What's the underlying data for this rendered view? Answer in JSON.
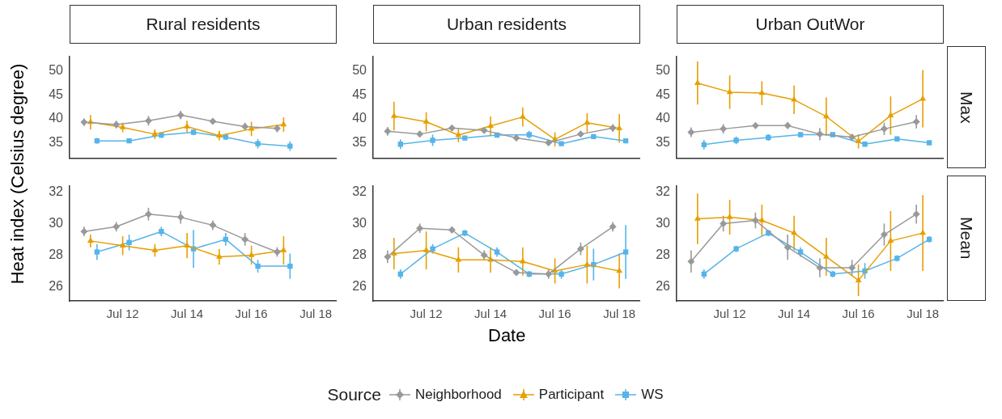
{
  "chart_data": [
    {
      "type": "line",
      "title": "Rural residents",
      "ylabel": "Heat index (Celsius degree)",
      "legend": "bottom",
      "legend_title": "Source",
      "xlim": [
        "--07-10T08:24",
        "--07-18T15:36"
      ],
      "ylim": [
        31.8,
        53.1
      ],
      "yticks": [
        35,
        40,
        45,
        50
      ],
      "tick_labels": "y",
      "series": [
        {
          "name": "Neighborhood",
          "color": "#999999",
          "marker": "diamond",
          "x": [
            "--07-10T19:12",
            "--07-11T19:12",
            "--07-12T19:12",
            "--07-13T19:12",
            "--07-14T19:12",
            "--07-15T19:12",
            "--07-16T19:12"
          ],
          "values": [
            39.3,
            38.8,
            39.6,
            40.8,
            39.5,
            38.4,
            38.0
          ],
          "errors": [
            0.8,
            0.8,
            1.0,
            0.9,
            0.5,
            0.8,
            0.8
          ]
        },
        {
          "name": "Participant",
          "color": "#e69f00",
          "marker": "triangle",
          "x": [
            "--07-11",
            "--07-12",
            "--07-13",
            "--07-14",
            "--07-15",
            "--07-16",
            "--07-17"
          ],
          "values": [
            39.3,
            38.2,
            36.8,
            38.4,
            36.5,
            37.9,
            38.8
          ],
          "errors": [
            1.5,
            1.0,
            1.0,
            1.2,
            1.0,
            1.5,
            1.5
          ]
        },
        {
          "name": "WS",
          "color": "#56b4e9",
          "marker": "square",
          "x": [
            "--07-11T04:48",
            "--07-12T04:48",
            "--07-13T04:48",
            "--07-14T04:48",
            "--07-15T04:48",
            "--07-16T04:48",
            "--07-17T04:48"
          ],
          "values": [
            35.4,
            35.4,
            36.6,
            37.2,
            36.2,
            34.8,
            34.3
          ],
          "errors": [
            0.6,
            0.3,
            0.6,
            0.6,
            0.6,
            1.0,
            1.0
          ]
        }
      ]
    },
    {
      "type": "line",
      "title": "Urban residents",
      "xlim": [
        "--07-10T08:24",
        "--07-18T15:36"
      ],
      "ylim": [
        31.8,
        53.1
      ],
      "yticks": [
        35,
        40,
        45,
        50
      ],
      "tick_labels": "y",
      "series": [
        {
          "color": "#999999",
          "marker": "diamond",
          "x": [
            "--07-10T19:12",
            "--07-11T19:12",
            "--07-12T19:12",
            "--07-13T19:12",
            "--07-14T19:12",
            "--07-15T19:12",
            "--07-16T19:12",
            "--07-17T19:12"
          ],
          "values": [
            37.4,
            36.8,
            38.1,
            37.6,
            36.0,
            35.0,
            36.8,
            38.1
          ],
          "errors": [
            0.9,
            0.6,
            0.5,
            0.5,
            0.6,
            0.5,
            0.5,
            0.8
          ]
        },
        {
          "color": "#e69f00",
          "marker": "triangle",
          "x": [
            "--07-11",
            "--07-12",
            "--07-13",
            "--07-14",
            "--07-15",
            "--07-16",
            "--07-17",
            "--07-18"
          ],
          "values": [
            40.6,
            39.4,
            36.6,
            38.5,
            40.4,
            35.7,
            39.2,
            38.0
          ],
          "errors": [
            3.0,
            2.0,
            1.5,
            2.0,
            2.0,
            1.5,
            2.0,
            3.0
          ]
        },
        {
          "color": "#56b4e9",
          "marker": "square",
          "x": [
            "--07-11T04:48",
            "--07-12T04:48",
            "--07-13T04:48",
            "--07-14T04:48",
            "--07-15T04:48",
            "--07-16T04:48",
            "--07-17T04:48",
            "--07-18T04:48"
          ],
          "values": [
            34.7,
            35.5,
            36.0,
            36.6,
            36.7,
            34.8,
            36.3,
            35.4
          ],
          "errors": [
            1.0,
            1.2,
            0.5,
            0.3,
            0.8,
            0.4,
            0.3,
            0.3
          ]
        }
      ]
    },
    {
      "type": "line",
      "title": "Urban OutWor",
      "annotations": [
        "Max"
      ],
      "xlim": [
        "--07-10T08:24",
        "--07-18T15:36"
      ],
      "ylim": [
        31.8,
        53.1
      ],
      "yticks": [
        35,
        40,
        45,
        50
      ],
      "tick_labels": "y",
      "series": [
        {
          "color": "#999999",
          "marker": "diamond",
          "x": [
            "--07-10T19:12",
            "--07-11T19:12",
            "--07-12T19:12",
            "--07-13T19:12",
            "--07-14T19:12",
            "--07-15T19:12",
            "--07-16T19:12",
            "--07-17T19:12"
          ],
          "values": [
            37.2,
            37.9,
            38.6,
            38.6,
            36.8,
            36.2,
            37.9,
            39.4
          ],
          "errors": [
            1.0,
            1.0,
            0.5,
            0.7,
            1.3,
            0.5,
            1.3,
            1.4
          ]
        },
        {
          "color": "#e69f00",
          "marker": "triangle",
          "x": [
            "--07-11",
            "--07-12",
            "--07-13",
            "--07-14",
            "--07-15",
            "--07-16",
            "--07-17",
            "--07-18"
          ],
          "values": [
            47.5,
            45.6,
            45.4,
            44.0,
            40.5,
            35.3,
            40.7,
            44.2
          ],
          "errors": [
            4.5,
            3.5,
            2.5,
            3.0,
            4.0,
            1.5,
            4.0,
            6.0
          ]
        },
        {
          "color": "#56b4e9",
          "marker": "square",
          "x": [
            "--07-11T04:48",
            "--07-12T04:48",
            "--07-13T04:48",
            "--07-14T04:48",
            "--07-15T04:48",
            "--07-16T04:48",
            "--07-17T04:48",
            "--07-18T04:48"
          ],
          "values": [
            34.6,
            35.5,
            36.1,
            36.7,
            36.7,
            34.7,
            35.8,
            35.0
          ],
          "errors": [
            1.0,
            0.8,
            0.7,
            0.3,
            0.3,
            0.3,
            0.3,
            0.3
          ]
        }
      ]
    },
    {
      "type": "line",
      "xlim": [
        "--07-10T08:24",
        "--07-18T15:36"
      ],
      "xticks": [
        {
          "value": "--07-12",
          "label": "Jul 12"
        },
        {
          "value": "--07-14",
          "label": "Jul 14"
        },
        {
          "value": "--07-16",
          "label": "Jul 16"
        },
        {
          "value": "--07-18",
          "label": "Jul 18"
        }
      ],
      "ylim": [
        25.1,
        32.4
      ],
      "yticks": [
        26,
        28,
        30,
        32
      ],
      "series": [
        {
          "color": "#999999",
          "marker": "diamond",
          "x": [
            "--07-10T19:12",
            "--07-11T19:12",
            "--07-12T19:12",
            "--07-13T19:12",
            "--07-14T19:12",
            "--07-15T19:12",
            "--07-16T19:12"
          ],
          "values": [
            29.5,
            29.8,
            30.6,
            30.4,
            29.9,
            29.0,
            28.2
          ],
          "errors": [
            0.3,
            0.3,
            0.4,
            0.4,
            0.3,
            0.4,
            0.3
          ]
        },
        {
          "color": "#e69f00",
          "marker": "triangle",
          "x": [
            "--07-11",
            "--07-12",
            "--07-13",
            "--07-14",
            "--07-15",
            "--07-16",
            "--07-17"
          ],
          "values": [
            28.9,
            28.6,
            28.3,
            28.6,
            27.9,
            28.0,
            28.3
          ],
          "errors": [
            0.4,
            0.6,
            0.4,
            0.8,
            0.5,
            0.6,
            0.9
          ]
        },
        {
          "color": "#56b4e9",
          "marker": "square",
          "x": [
            "--07-11T04:48",
            "--07-12T04:48",
            "--07-13T04:48",
            "--07-14T04:48",
            "--07-15T04:48",
            "--07-16T04:48",
            "--07-17T04:48"
          ],
          "values": [
            28.2,
            28.8,
            29.5,
            28.4,
            29.0,
            27.3,
            27.3
          ],
          "errors": [
            0.5,
            0.5,
            0.3,
            1.2,
            0.4,
            0.4,
            0.8
          ]
        }
      ]
    },
    {
      "type": "line",
      "xlabel": "Date",
      "xlim": [
        "--07-10T08:24",
        "--07-18T15:36"
      ],
      "xticks": [
        {
          "value": "--07-12",
          "label": "Jul 12"
        },
        {
          "value": "--07-14",
          "label": "Jul 14"
        },
        {
          "value": "--07-16",
          "label": "Jul 16"
        },
        {
          "value": "--07-18",
          "label": "Jul 18"
        }
      ],
      "ylim": [
        25.1,
        32.4
      ],
      "yticks": [
        26,
        28,
        30,
        32
      ],
      "series": [
        {
          "color": "#999999",
          "marker": "diamond",
          "x": [
            "--07-10T19:12",
            "--07-11T19:12",
            "--07-12T19:12",
            "--07-13T19:12",
            "--07-14T19:12",
            "--07-15T19:12",
            "--07-16T19:12",
            "--07-17T19:12"
          ],
          "values": [
            27.9,
            29.7,
            29.6,
            28.0,
            26.9,
            26.8,
            28.4,
            29.8
          ],
          "errors": [
            0.4,
            0.3,
            0.2,
            0.3,
            0.2,
            0.3,
            0.4,
            0.3
          ]
        },
        {
          "color": "#e69f00",
          "marker": "triangle",
          "x": [
            "--07-11",
            "--07-12",
            "--07-13",
            "--07-14",
            "--07-15",
            "--07-16",
            "--07-17",
            "--07-18"
          ],
          "values": [
            28.1,
            28.3,
            27.7,
            27.7,
            27.6,
            27.0,
            27.4,
            27.0
          ],
          "errors": [
            1.0,
            1.2,
            0.8,
            0.8,
            0.9,
            0.8,
            1.2,
            1.1
          ]
        },
        {
          "color": "#56b4e9",
          "marker": "square",
          "x": [
            "--07-11T04:48",
            "--07-12T04:48",
            "--07-13T04:48",
            "--07-14T04:48",
            "--07-15T04:48",
            "--07-16T04:48",
            "--07-17T04:48",
            "--07-18T04:48"
          ],
          "values": [
            26.8,
            28.4,
            29.4,
            28.2,
            26.8,
            26.8,
            27.4,
            28.2
          ],
          "errors": [
            0.3,
            0.3,
            0.2,
            0.3,
            0.2,
            0.3,
            1.0,
            1.7
          ]
        }
      ]
    },
    {
      "type": "line",
      "annotations": [
        "Mean"
      ],
      "xlim": [
        "--07-10T08:24",
        "--07-18T15:36"
      ],
      "xticks": [
        {
          "value": "--07-12",
          "label": "Jul 12"
        },
        {
          "value": "--07-14",
          "label": "Jul 14"
        },
        {
          "value": "--07-16",
          "label": "Jul 16"
        },
        {
          "value": "--07-18",
          "label": "Jul 18"
        }
      ],
      "ylim": [
        25.1,
        32.4
      ],
      "yticks": [
        26,
        28,
        30,
        32
      ],
      "series": [
        {
          "color": "#999999",
          "marker": "diamond",
          "x": [
            "--07-10T19:12",
            "--07-11T19:12",
            "--07-12T19:12",
            "--07-13T19:12",
            "--07-14T19:12",
            "--07-15T19:12",
            "--07-16T19:12",
            "--07-17T19:12"
          ],
          "values": [
            27.6,
            30.0,
            30.2,
            28.5,
            27.2,
            27.2,
            29.3,
            30.6
          ],
          "errors": [
            0.7,
            0.5,
            0.5,
            0.8,
            0.6,
            0.5,
            0.7,
            0.6
          ]
        },
        {
          "color": "#e69f00",
          "marker": "triangle",
          "x": [
            "--07-11",
            "--07-12",
            "--07-13",
            "--07-14",
            "--07-15",
            "--07-16",
            "--07-17",
            "--07-18"
          ],
          "values": [
            30.3,
            30.4,
            30.2,
            29.4,
            27.9,
            26.4,
            28.9,
            29.4
          ],
          "errors": [
            1.6,
            1.1,
            1.0,
            1.1,
            1.2,
            1.0,
            1.9,
            2.4
          ]
        },
        {
          "color": "#56b4e9",
          "marker": "square",
          "x": [
            "--07-11T04:48",
            "--07-12T04:48",
            "--07-13T04:48",
            "--07-14T04:48",
            "--07-15T04:48",
            "--07-16T04:48",
            "--07-17T04:48",
            "--07-18T04:48"
          ],
          "values": [
            26.8,
            28.4,
            29.4,
            28.2,
            26.8,
            27.0,
            27.8,
            29.0
          ],
          "errors": [
            0.3,
            0.2,
            0.2,
            0.3,
            0.2,
            0.5,
            0.2,
            0.2
          ]
        }
      ]
    }
  ]
}
